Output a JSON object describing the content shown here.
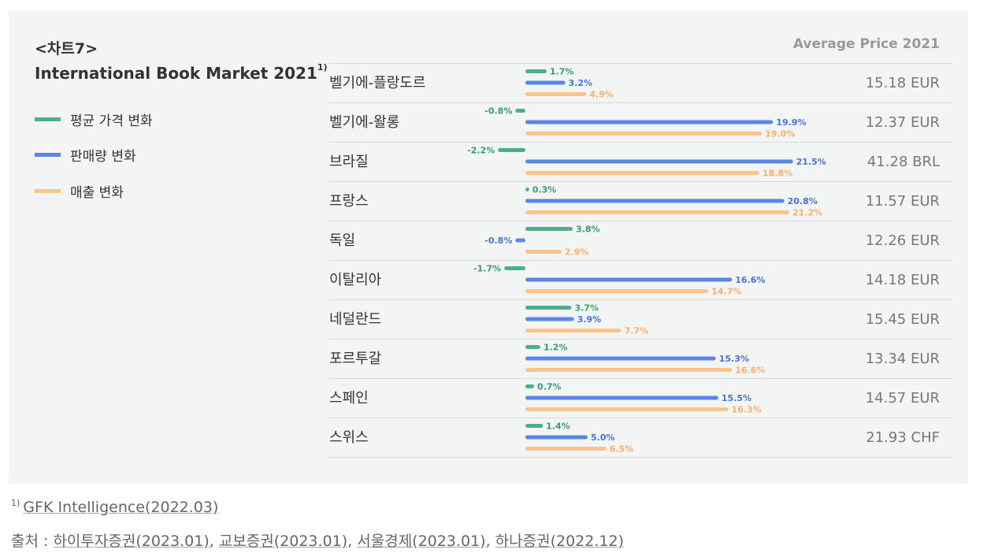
{
  "header": {
    "chart_number": "<차트7>",
    "title": "International Book Market 2021",
    "title_sup": "1)",
    "avg_price_label": "Average Price 2021"
  },
  "colors": {
    "price_change": "#4caf8a",
    "sales_volume_change": "#5b86e5",
    "revenue_change": "#fbc48a",
    "text": "#333333"
  },
  "chart_data": {
    "type": "bar",
    "orientation": "horizontal",
    "title": "International Book Market 2021",
    "categories": [
      "벨기에-플랑도르",
      "벨기에-왈롱",
      "브라질",
      "프랑스",
      "독일",
      "이탈리아",
      "네덜란드",
      "포르투갈",
      "스페인",
      "스위스"
    ],
    "series": [
      {
        "name": "평균 가격 변화",
        "values": [
          1.7,
          -0.8,
          -2.2,
          0.3,
          3.8,
          -1.7,
          3.7,
          1.2,
          0.7,
          1.4
        ],
        "labels": [
          "1.7%",
          "-0.8%",
          "-2.2%",
          "0.3%",
          "3.8%",
          "-1.7%",
          "3.7%",
          "1.2%",
          "0.7%",
          "1.4%"
        ]
      },
      {
        "name": "판매량 변화",
        "values": [
          3.2,
          19.9,
          21.5,
          20.8,
          -0.8,
          16.6,
          3.9,
          15.3,
          15.5,
          5.0
        ],
        "labels": [
          "3.2%",
          "19.9%",
          "21.5%",
          "20.8%",
          "-0.8%",
          "16.6%",
          "3.9%",
          "15.3%",
          "15.5%",
          "5.0%"
        ]
      },
      {
        "name": "매출 변화",
        "values": [
          4.9,
          19.0,
          18.8,
          21.2,
          2.9,
          14.7,
          7.7,
          16.6,
          16.3,
          6.5
        ],
        "labels": [
          "4.9%",
          "19.0%",
          "18.8%",
          "21.2%",
          "2.9%",
          "14.7%",
          "7.7%",
          "16.6%",
          "16.3%",
          "6.5%"
        ]
      }
    ],
    "average_price": [
      "15.18 EUR",
      "12.37 EUR",
      "41.28 BRL",
      "11.57 EUR",
      "12.26 EUR",
      "14.18 EUR",
      "15.45 EUR",
      "13.34 EUR",
      "14.57 EUR",
      "21.93 CHF"
    ],
    "xlabel": "",
    "ylabel": "",
    "legend": "left"
  },
  "footnote": {
    "sup": "1)",
    "text": "GFK Intelligence(2022.03)"
  },
  "source": {
    "prefix": "출처 : ",
    "items": [
      "하이투자증권(2023.01)",
      "교보증권(2023.01)",
      "서울경제(2023.01)",
      "하나증권(2022.12)"
    ],
    "separator": ", "
  }
}
